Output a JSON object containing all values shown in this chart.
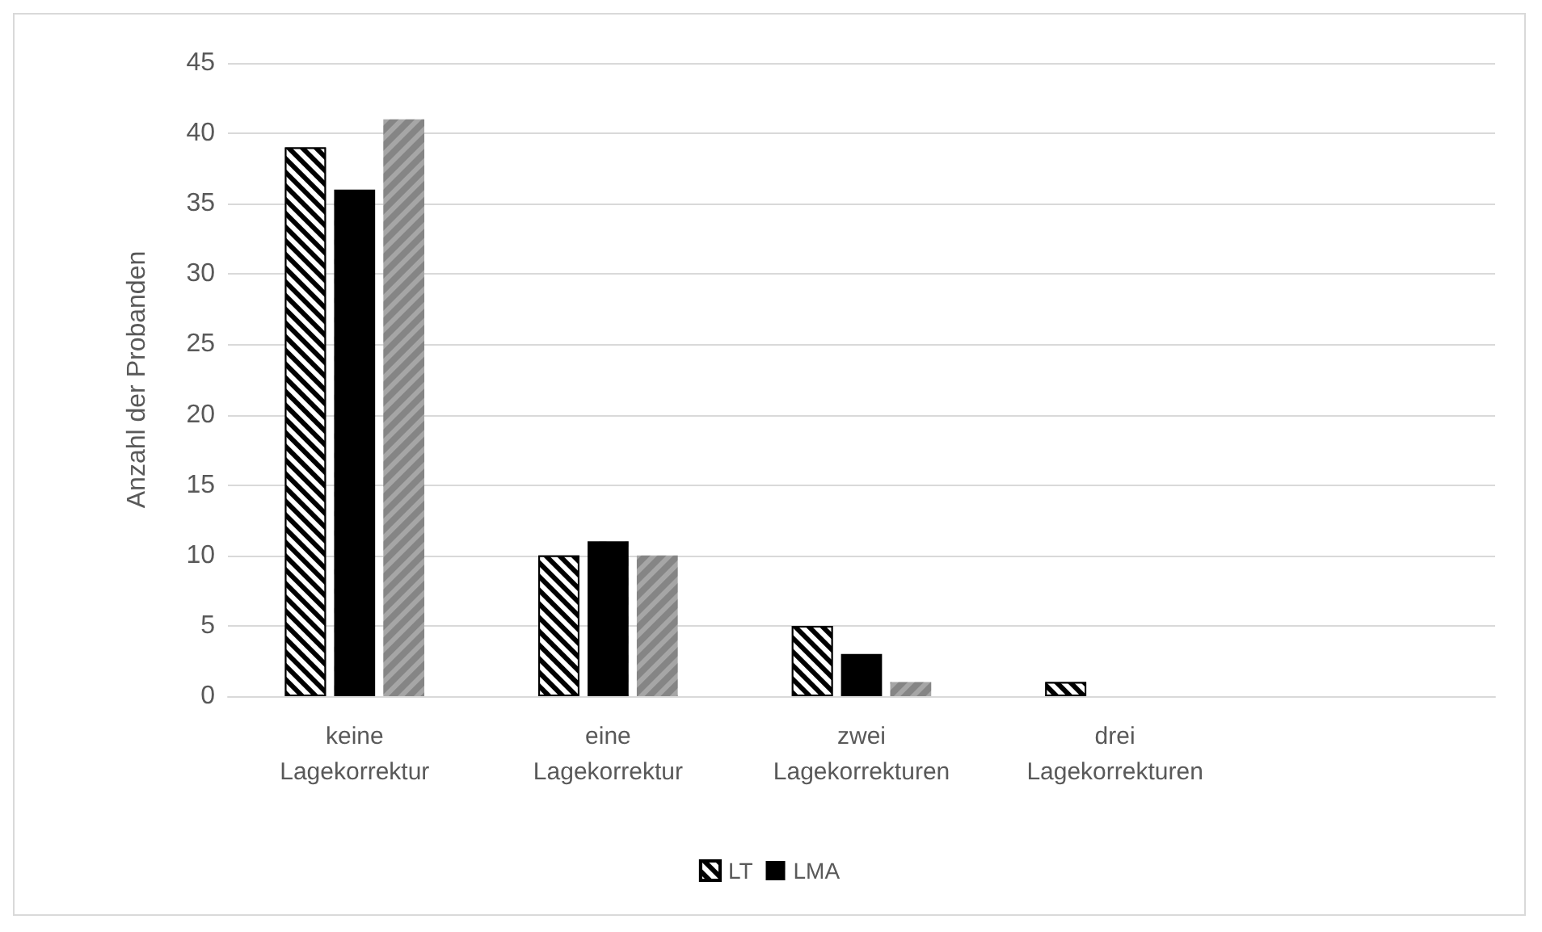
{
  "chart_data": {
    "type": "bar",
    "ylabel": "Anzahl der Probanden",
    "categories": [
      "keine Lagekorrektur",
      "eine Lagekorrektur",
      "zwei Lagekorrekturen",
      "drei Lagekorrekturen",
      null
    ],
    "series": [
      {
        "name": "LT",
        "color": "#000000",
        "values": [
          39,
          10,
          5,
          1,
          null
        ]
      },
      {
        "name": "LMA",
        "color": "#000000",
        "values": [
          36,
          11,
          3,
          0,
          null
        ]
      },
      {
        "color": "#a6a6a6",
        "values": [
          41,
          10,
          1,
          0,
          null
        ]
      }
    ],
    "ylim": [
      0,
      45
    ],
    "yticks": [
      0,
      5,
      10,
      15,
      20,
      25,
      30,
      35,
      40,
      45
    ],
    "grid": "y",
    "legend": "bottom"
  }
}
